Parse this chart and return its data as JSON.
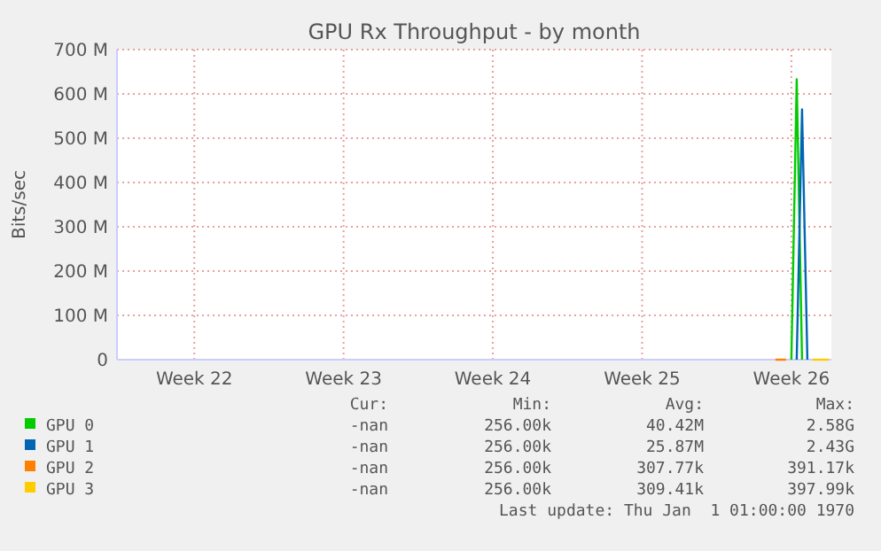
{
  "chart_data": {
    "type": "line",
    "title": "GPU Rx Throughput - by month",
    "ylabel": "Bits/sec",
    "categories": [
      null,
      null,
      null,
      null,
      null,
      null,
      null,
      null,
      null,
      null,
      null,
      null,
      null,
      null,
      "Week 22",
      null,
      null,
      null,
      null,
      null,
      null,
      null,
      null,
      null,
      null,
      null,
      null,
      null,
      null,
      null,
      null,
      null,
      null,
      null,
      null,
      null,
      null,
      null,
      null,
      null,
      null,
      null,
      "Week 23",
      null,
      null,
      null,
      null,
      null,
      null,
      null,
      null,
      null,
      null,
      null,
      null,
      null,
      null,
      null,
      null,
      null,
      null,
      null,
      null,
      null,
      null,
      null,
      null,
      null,
      null,
      null,
      "Week 24",
      null,
      null,
      null,
      null,
      null,
      null,
      null,
      null,
      null,
      null,
      null,
      null,
      null,
      null,
      null,
      null,
      null,
      null,
      null,
      null,
      null,
      null,
      null,
      null,
      null,
      null,
      null,
      "Week 25",
      null,
      null,
      null,
      null,
      null,
      null,
      null,
      null,
      null,
      null,
      null,
      null,
      null,
      null,
      null,
      null,
      null,
      null,
      null,
      null,
      null,
      null,
      null,
      null,
      null,
      null,
      null,
      "Week 26",
      null,
      null,
      null,
      null,
      null,
      null,
      null
    ],
    "ylim": [
      0,
      700
    ],
    "yticks": [
      {
        "value": 0,
        "label": "0"
      },
      {
        "value": 100,
        "label": "100 M"
      },
      {
        "value": 200,
        "label": "200 M"
      },
      {
        "value": 300,
        "label": "300 M"
      },
      {
        "value": 400,
        "label": "400 M"
      },
      {
        "value": 500,
        "label": "500 M"
      },
      {
        "value": 600,
        "label": "600 M"
      },
      {
        "value": 700,
        "label": "700 M"
      }
    ],
    "grid": true,
    "legend": "bottom",
    "line_style": "solid",
    "series": [
      {
        "name": "GPU 0",
        "color": "#00cc00",
        "values": [
          null,
          null,
          null,
          null,
          null,
          null,
          null,
          null,
          null,
          null,
          null,
          null,
          null,
          null,
          null,
          null,
          null,
          null,
          null,
          null,
          null,
          null,
          null,
          null,
          null,
          null,
          null,
          null,
          null,
          null,
          null,
          null,
          null,
          null,
          null,
          null,
          null,
          null,
          null,
          null,
          null,
          null,
          null,
          null,
          null,
          null,
          null,
          null,
          null,
          null,
          null,
          null,
          null,
          null,
          null,
          null,
          null,
          null,
          null,
          null,
          null,
          null,
          null,
          null,
          null,
          null,
          null,
          null,
          null,
          null,
          null,
          null,
          null,
          null,
          null,
          null,
          null,
          null,
          null,
          null,
          null,
          null,
          null,
          null,
          null,
          null,
          null,
          null,
          null,
          null,
          null,
          null,
          null,
          null,
          null,
          null,
          null,
          null,
          null,
          null,
          null,
          null,
          null,
          null,
          null,
          null,
          null,
          null,
          null,
          null,
          null,
          null,
          null,
          null,
          null,
          null,
          null,
          null,
          null,
          null,
          null,
          null,
          null,
          null,
          null,
          null,
          0,
          633,
          0,
          null,
          null,
          null,
          null,
          null
        ]
      },
      {
        "name": "GPU 1",
        "color": "#0066b3",
        "values": [
          null,
          null,
          null,
          null,
          null,
          null,
          null,
          null,
          null,
          null,
          null,
          null,
          null,
          null,
          null,
          null,
          null,
          null,
          null,
          null,
          null,
          null,
          null,
          null,
          null,
          null,
          null,
          null,
          null,
          null,
          null,
          null,
          null,
          null,
          null,
          null,
          null,
          null,
          null,
          null,
          null,
          null,
          null,
          null,
          null,
          null,
          null,
          null,
          null,
          null,
          null,
          null,
          null,
          null,
          null,
          null,
          null,
          null,
          null,
          null,
          null,
          null,
          null,
          null,
          null,
          null,
          null,
          null,
          null,
          null,
          null,
          null,
          null,
          null,
          null,
          null,
          null,
          null,
          null,
          null,
          null,
          null,
          null,
          null,
          null,
          null,
          null,
          null,
          null,
          null,
          null,
          null,
          null,
          null,
          null,
          null,
          null,
          null,
          null,
          null,
          null,
          null,
          null,
          null,
          null,
          null,
          null,
          null,
          null,
          null,
          null,
          null,
          null,
          null,
          null,
          null,
          null,
          null,
          null,
          null,
          null,
          null,
          null,
          null,
          null,
          null,
          null,
          0,
          565,
          0,
          null,
          null,
          null,
          null
        ]
      },
      {
        "name": "GPU 2",
        "color": "#ff8000",
        "values": [
          null,
          null,
          null,
          null,
          null,
          null,
          null,
          null,
          null,
          null,
          null,
          null,
          null,
          null,
          null,
          null,
          null,
          null,
          null,
          null,
          null,
          null,
          null,
          null,
          null,
          null,
          null,
          null,
          null,
          null,
          null,
          null,
          null,
          null,
          null,
          null,
          null,
          null,
          null,
          null,
          null,
          null,
          null,
          null,
          null,
          null,
          null,
          null,
          null,
          null,
          null,
          null,
          null,
          null,
          null,
          null,
          null,
          null,
          null,
          null,
          null,
          null,
          null,
          null,
          null,
          null,
          null,
          null,
          null,
          null,
          null,
          null,
          null,
          null,
          null,
          null,
          null,
          null,
          null,
          null,
          null,
          null,
          null,
          null,
          null,
          null,
          null,
          null,
          null,
          null,
          null,
          null,
          null,
          null,
          null,
          null,
          null,
          null,
          null,
          null,
          null,
          null,
          null,
          null,
          null,
          null,
          null,
          null,
          null,
          null,
          null,
          null,
          null,
          null,
          null,
          null,
          null,
          null,
          null,
          null,
          null,
          null,
          null,
          0,
          0,
          0,
          null,
          null,
          null,
          null,
          null,
          null,
          null,
          null
        ]
      },
      {
        "name": "GPU 3",
        "color": "#ffcc00",
        "values": [
          null,
          null,
          null,
          null,
          null,
          null,
          null,
          null,
          null,
          null,
          null,
          null,
          null,
          null,
          null,
          null,
          null,
          null,
          null,
          null,
          null,
          null,
          null,
          null,
          null,
          null,
          null,
          null,
          null,
          null,
          null,
          null,
          null,
          null,
          null,
          null,
          null,
          null,
          null,
          null,
          null,
          null,
          null,
          null,
          null,
          null,
          null,
          null,
          null,
          null,
          null,
          null,
          null,
          null,
          null,
          null,
          null,
          null,
          null,
          null,
          null,
          null,
          null,
          null,
          null,
          null,
          null,
          null,
          null,
          null,
          null,
          null,
          null,
          null,
          null,
          null,
          null,
          null,
          null,
          null,
          null,
          null,
          null,
          null,
          null,
          null,
          null,
          null,
          null,
          null,
          null,
          null,
          null,
          null,
          null,
          null,
          null,
          null,
          null,
          null,
          null,
          null,
          null,
          null,
          null,
          null,
          null,
          null,
          null,
          null,
          null,
          null,
          null,
          null,
          null,
          null,
          null,
          null,
          null,
          null,
          null,
          null,
          null,
          null,
          null,
          null,
          null,
          null,
          null,
          null,
          0,
          0,
          0,
          0
        ]
      }
    ],
    "annotations": [
      "Cur:",
      "Min:",
      "Avg:",
      "Max:",
      "-nan",
      "256.00k",
      "40.42M",
      "2.58G",
      "-nan",
      "256.00k",
      "25.87M",
      "2.43G",
      "-nan",
      "256.00k",
      "307.77k",
      "391.17k",
      "-nan",
      "256.00k",
      "309.41k",
      "397.99k",
      "Last update: Thu Jan  1 01:00:00 1970"
    ]
  }
}
